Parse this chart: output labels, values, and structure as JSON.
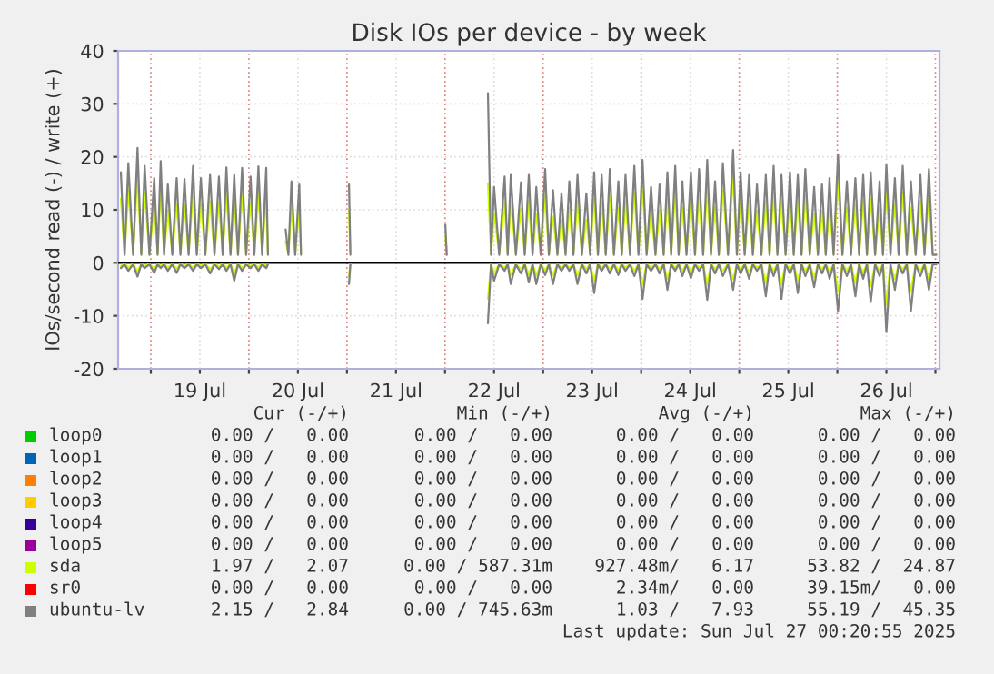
{
  "chart_data": {
    "type": "line",
    "title": "Disk IOs per device - by week",
    "ylabel": "IOs/second read (-) / write (+)",
    "x": [
      "2025-07-18T16:40",
      "2025-07-18T17:35",
      "2025-07-18T18:30",
      "2025-07-18T19:40",
      "2025-07-18T20:45",
      "2025-07-18T21:40",
      "2025-07-18T22:30",
      "2025-07-18T23:40",
      "2025-07-19T00:50",
      "2025-07-19T01:40",
      "2025-07-19T02:25",
      "2025-07-19T03:15",
      "2025-07-19T04:10",
      "2025-07-19T05:15",
      "2025-07-19T06:20",
      "2025-07-19T07:15",
      "2025-07-19T08:15",
      "2025-07-19T09:15",
      "2025-07-19T10:20",
      "2025-07-19T11:15",
      "2025-07-19T12:15",
      "2025-07-19T13:20",
      "2025-07-19T14:30",
      "2025-07-19T15:35",
      "2025-07-19T16:40",
      "2025-07-19T17:35",
      "2025-07-19T18:30",
      "2025-07-19T19:30",
      "2025-07-19T20:25",
      "2025-07-19T21:20",
      "2025-07-19T22:20",
      "2025-07-19T23:20",
      "2025-07-20T00:25",
      "2025-07-20T01:20",
      "2025-07-20T02:20",
      "2025-07-20T03:15",
      "2025-07-20T04:15",
      "2025-07-20T04:40",
      "2025-07-20T06:30",
      "2025-07-20T09:00",
      "2025-07-20T09:40",
      "2025-07-20T10:25",
      "2025-07-20T11:20",
      "2025-07-20T12:20",
      "2025-07-20T12:45",
      "2025-07-20T18:00",
      "2025-07-21T00:30",
      "2025-07-21T00:50",
      "2025-07-21T12:00",
      "2025-07-22T00:05",
      "2025-07-22T00:25",
      "2025-07-22T05:00",
      "2025-07-22T10:30",
      "2025-07-22T11:15",
      "2025-07-22T12:00",
      "2025-07-22T13:15",
      "2025-07-22T14:35",
      "2025-07-22T15:20",
      "2025-07-22T16:05",
      "2025-07-22T17:20",
      "2025-07-22T18:35",
      "2025-07-22T19:30",
      "2025-07-22T20:30",
      "2025-07-22T21:25",
      "2025-07-22T22:20",
      "2025-07-22T23:25",
      "2025-07-23T00:30",
      "2025-07-23T01:25",
      "2025-07-23T02:25",
      "2025-07-23T03:30",
      "2025-07-23T04:30",
      "2025-07-23T05:30",
      "2025-07-23T06:25",
      "2025-07-23T07:25",
      "2025-07-23T08:25",
      "2025-07-23T09:30",
      "2025-07-23T10:35",
      "2025-07-23T11:30",
      "2025-07-23T12:30",
      "2025-07-23T13:25",
      "2025-07-23T14:20",
      "2025-07-23T15:20",
      "2025-07-23T16:20",
      "2025-07-23T17:20",
      "2025-07-23T18:25",
      "2025-07-23T19:15",
      "2025-07-23T20:10",
      "2025-07-23T21:15",
      "2025-07-23T22:20",
      "2025-07-23T23:20",
      "2025-07-24T00:20",
      "2025-07-24T01:20",
      "2025-07-24T02:25",
      "2025-07-24T03:30",
      "2025-07-24T04:30",
      "2025-07-24T05:30",
      "2025-07-24T06:25",
      "2025-07-24T07:20",
      "2025-07-24T08:20",
      "2025-07-24T09:10",
      "2025-07-24T10:05",
      "2025-07-24T11:05",
      "2025-07-24T12:10",
      "2025-07-24T13:10",
      "2025-07-24T14:10",
      "2025-07-24T15:10",
      "2025-07-24T16:10",
      "2025-07-24T17:05",
      "2025-07-24T18:05",
      "2025-07-24T19:00",
      "2025-07-24T20:00",
      "2025-07-24T21:15",
      "2025-07-24T22:30",
      "2025-07-24T23:25",
      "2025-07-25T00:20",
      "2025-07-25T01:20",
      "2025-07-25T02:25",
      "2025-07-25T03:20",
      "2025-07-25T04:20",
      "2025-07-25T05:25",
      "2025-07-25T06:30",
      "2025-07-25T07:25",
      "2025-07-25T08:25",
      "2025-07-25T09:20",
      "2025-07-25T10:20",
      "2025-07-25T11:20",
      "2025-07-25T12:25",
      "2025-07-25T13:20",
      "2025-07-25T14:20",
      "2025-07-25T15:15",
      "2025-07-25T16:10",
      "2025-07-25T17:15",
      "2025-07-25T18:20",
      "2025-07-25T19:15",
      "2025-07-25T20:15",
      "2025-07-25T21:10",
      "2025-07-25T22:05",
      "2025-07-25T23:05",
      "2025-07-26T00:10",
      "2025-07-26T01:15",
      "2025-07-26T02:20",
      "2025-07-26T03:20",
      "2025-07-26T04:25",
      "2025-07-26T05:20",
      "2025-07-26T06:20",
      "2025-07-26T07:15",
      "2025-07-26T08:10",
      "2025-07-26T09:15",
      "2025-07-26T10:20",
      "2025-07-26T11:10",
      "2025-07-26T12:00",
      "2025-07-26T13:00",
      "2025-07-26T14:05",
      "2025-07-26T15:00",
      "2025-07-26T16:00",
      "2025-07-26T17:00",
      "2025-07-26T18:00",
      "2025-07-26T19:10",
      "2025-07-26T20:20",
      "2025-07-26T21:20",
      "2025-07-26T22:25",
      "2025-07-26T23:20",
      "2025-07-27T00:15"
    ],
    "series": [
      {
        "name": "loop0",
        "color": "#00cc00",
        "values": [
          null,
          null,
          null,
          null,
          null,
          null,
          null,
          null,
          null,
          null,
          null,
          null,
          null,
          null,
          null,
          null,
          null,
          null,
          null,
          null,
          null,
          null,
          null,
          null,
          null,
          null,
          null,
          null,
          null,
          null,
          null,
          null,
          null,
          null,
          null,
          null,
          null,
          null,
          null,
          null,
          null,
          null,
          null,
          null,
          null,
          null,
          null,
          null,
          null,
          null,
          null,
          null,
          null,
          null,
          null,
          null,
          null,
          null,
          null,
          null,
          null,
          null,
          null,
          null,
          null,
          null,
          null,
          null,
          null,
          null,
          null,
          null,
          null,
          null,
          null,
          null,
          null,
          null,
          null,
          null,
          null,
          null,
          null,
          null,
          null,
          null,
          null,
          null,
          null,
          null,
          null,
          null,
          null,
          null,
          null,
          null,
          null,
          null,
          null,
          null,
          null,
          null,
          null,
          null,
          null,
          null,
          null,
          null,
          null,
          null,
          null,
          null,
          null,
          null,
          null,
          null,
          null,
          null,
          null,
          null,
          null,
          null,
          null,
          null,
          null,
          null,
          null,
          null,
          null,
          null,
          null,
          null,
          null,
          null,
          null,
          null,
          null,
          null,
          null,
          null,
          null,
          null,
          null,
          null,
          null,
          null,
          null,
          null,
          null,
          null,
          null,
          null,
          null,
          null,
          null,
          null,
          null,
          null,
          null,
          null,
          null,
          null,
          null
        ]
      },
      {
        "name": "loop1",
        "color": "#0066b3",
        "values": [
          null,
          null,
          null,
          null,
          null,
          null,
          null,
          null,
          null,
          null,
          null,
          null,
          null,
          null,
          null,
          null,
          null,
          null,
          null,
          null,
          null,
          null,
          null,
          null,
          null,
          null,
          null,
          null,
          null,
          null,
          null,
          null,
          null,
          null,
          null,
          null,
          null,
          null,
          null,
          null,
          null,
          null,
          null,
          null,
          null,
          null,
          null,
          null,
          null,
          null,
          null,
          null,
          null,
          null,
          null,
          null,
          null,
          null,
          null,
          null,
          null,
          null,
          null,
          null,
          null,
          null,
          null,
          null,
          null,
          null,
          null,
          null,
          null,
          null,
          null,
          null,
          null,
          null,
          null,
          null,
          null,
          null,
          null,
          null,
          null,
          null,
          null,
          null,
          null,
          null,
          null,
          null,
          null,
          null,
          null,
          null,
          null,
          null,
          null,
          null,
          null,
          null,
          null,
          null,
          null,
          null,
          null,
          null,
          null,
          null,
          null,
          null,
          null,
          null,
          null,
          null,
          null,
          null,
          null,
          null,
          null,
          null,
          null,
          null,
          null,
          null,
          null,
          null,
          null,
          null,
          null,
          null,
          null,
          null,
          null,
          null,
          null,
          null,
          null,
          null,
          null,
          null,
          null,
          null,
          null,
          null,
          null,
          null,
          null,
          null,
          null,
          null,
          null,
          null,
          null,
          null,
          null,
          null,
          null,
          null,
          null,
          null,
          null
        ]
      },
      {
        "name": "loop2",
        "color": "#ff8000",
        "values": [
          null,
          null,
          null,
          null,
          null,
          null,
          null,
          null,
          null,
          null,
          null,
          null,
          null,
          null,
          null,
          null,
          null,
          null,
          null,
          null,
          null,
          null,
          null,
          null,
          null,
          null,
          null,
          null,
          null,
          null,
          null,
          null,
          null,
          null,
          null,
          null,
          null,
          null,
          null,
          null,
          null,
          null,
          null,
          null,
          null,
          null,
          null,
          null,
          null,
          null,
          null,
          null,
          null,
          null,
          null,
          null,
          null,
          null,
          null,
          null,
          null,
          null,
          null,
          null,
          null,
          null,
          null,
          null,
          null,
          null,
          null,
          null,
          null,
          null,
          null,
          null,
          null,
          null,
          null,
          null,
          null,
          null,
          null,
          null,
          null,
          null,
          null,
          null,
          null,
          null,
          null,
          null,
          null,
          null,
          null,
          null,
          null,
          null,
          null,
          null,
          null,
          null,
          null,
          null,
          null,
          null,
          null,
          null,
          null,
          null,
          null,
          null,
          null,
          null,
          null,
          null,
          null,
          null,
          null,
          null,
          null,
          null,
          null,
          null,
          null,
          null,
          null,
          null,
          null,
          null,
          null,
          null,
          null,
          null,
          null,
          null,
          null,
          null,
          null,
          null,
          null,
          null,
          null,
          null,
          null,
          null,
          null,
          null,
          null,
          null,
          null,
          null,
          null,
          null,
          null,
          null,
          null,
          null,
          null,
          null,
          null,
          null,
          null
        ]
      },
      {
        "name": "loop3",
        "color": "#ffcc00",
        "values": [
          null,
          null,
          null,
          null,
          null,
          null,
          null,
          null,
          null,
          null,
          null,
          null,
          null,
          null,
          null,
          null,
          null,
          null,
          null,
          null,
          null,
          null,
          null,
          null,
          null,
          null,
          null,
          null,
          null,
          null,
          null,
          null,
          null,
          null,
          null,
          null,
          null,
          null,
          null,
          null,
          null,
          null,
          null,
          null,
          null,
          null,
          null,
          null,
          null,
          null,
          null,
          null,
          null,
          null,
          null,
          null,
          null,
          null,
          null,
          null,
          null,
          null,
          null,
          null,
          null,
          null,
          null,
          null,
          null,
          null,
          null,
          null,
          null,
          null,
          null,
          null,
          null,
          null,
          null,
          null,
          null,
          null,
          null,
          null,
          null,
          null,
          null,
          null,
          null,
          null,
          null,
          null,
          null,
          null,
          null,
          null,
          null,
          null,
          null,
          null,
          null,
          null,
          null,
          null,
          null,
          null,
          null,
          null,
          null,
          null,
          null,
          null,
          null,
          null,
          null,
          null,
          null,
          null,
          null,
          null,
          null,
          null,
          null,
          null,
          null,
          null,
          null,
          null,
          null,
          null,
          null,
          null,
          null,
          null,
          null,
          null,
          null,
          null,
          null,
          null,
          null,
          null,
          null,
          null,
          null,
          null,
          null,
          null,
          null,
          null,
          null,
          null,
          null,
          null,
          null,
          null,
          null,
          null,
          null,
          null,
          null,
          null,
          null
        ]
      },
      {
        "name": "loop4",
        "color": "#330099",
        "values": [
          null,
          null,
          null,
          null,
          null,
          null,
          null,
          null,
          null,
          null,
          null,
          null,
          null,
          null,
          null,
          null,
          null,
          null,
          null,
          null,
          null,
          null,
          null,
          null,
          null,
          null,
          null,
          null,
          null,
          null,
          null,
          null,
          null,
          null,
          null,
          null,
          null,
          null,
          null,
          null,
          null,
          null,
          null,
          null,
          null,
          null,
          null,
          null,
          null,
          null,
          null,
          null,
          null,
          null,
          null,
          null,
          null,
          null,
          null,
          null,
          null,
          null,
          null,
          null,
          null,
          null,
          null,
          null,
          null,
          null,
          null,
          null,
          null,
          null,
          null,
          null,
          null,
          null,
          null,
          null,
          null,
          null,
          null,
          null,
          null,
          null,
          null,
          null,
          null,
          null,
          null,
          null,
          null,
          null,
          null,
          null,
          null,
          null,
          null,
          null,
          null,
          null,
          null,
          null,
          null,
          null,
          null,
          null,
          null,
          null,
          null,
          null,
          null,
          null,
          null,
          null,
          null,
          null,
          null,
          null,
          null,
          null,
          null,
          null,
          null,
          null,
          null,
          null,
          null,
          null,
          null,
          null,
          null,
          null,
          null,
          null,
          null,
          null,
          null,
          null,
          null,
          null,
          null,
          null,
          null,
          null,
          null,
          null,
          null,
          null,
          null,
          null,
          null,
          null,
          null,
          null,
          null,
          null,
          null,
          null,
          null,
          null,
          null
        ]
      },
      {
        "name": "loop5",
        "color": "#990099",
        "values": [
          null,
          null,
          null,
          null,
          null,
          null,
          null,
          null,
          null,
          null,
          null,
          null,
          null,
          null,
          null,
          null,
          null,
          null,
          null,
          null,
          null,
          null,
          null,
          null,
          null,
          null,
          null,
          null,
          null,
          null,
          null,
          null,
          null,
          null,
          null,
          null,
          null,
          null,
          null,
          null,
          null,
          null,
          null,
          null,
          null,
          null,
          null,
          null,
          null,
          null,
          null,
          null,
          null,
          null,
          null,
          null,
          null,
          null,
          null,
          null,
          null,
          null,
          null,
          null,
          null,
          null,
          null,
          null,
          null,
          null,
          null,
          null,
          null,
          null,
          null,
          null,
          null,
          null,
          null,
          null,
          null,
          null,
          null,
          null,
          null,
          null,
          null,
          null,
          null,
          null,
          null,
          null,
          null,
          null,
          null,
          null,
          null,
          null,
          null,
          null,
          null,
          null,
          null,
          null,
          null,
          null,
          null,
          null,
          null,
          null,
          null,
          null,
          null,
          null,
          null,
          null,
          null,
          null,
          null,
          null,
          null,
          null,
          null,
          null,
          null,
          null,
          null,
          null,
          null,
          null,
          null,
          null,
          null,
          null,
          null,
          null,
          null,
          null,
          null,
          null,
          null,
          null,
          null,
          null,
          null,
          null,
          null,
          null,
          null,
          null,
          null,
          null,
          null,
          null,
          null,
          null,
          null,
          null,
          null,
          null,
          null,
          null,
          null
        ]
      },
      {
        "name": "sda",
        "color": "#ccff00",
        "values": [
          12.1,
          1.8,
          13.8,
          1.8,
          16.7,
          1.8,
          13.3,
          1.8,
          11.0,
          1.8,
          14.2,
          1.8,
          9.8,
          1.8,
          11.0,
          1.8,
          10.8,
          1.8,
          13.3,
          1.8,
          11.0,
          1.8,
          11.6,
          1.8,
          11.3,
          1.8,
          13.0,
          1.8,
          11.6,
          1.8,
          12.9,
          1.8,
          11.3,
          1.8,
          13.2,
          1.8,
          12.9,
          1.8,
          null,
          4.0,
          1.8,
          10.4,
          1.8,
          9.8,
          1.8,
          null,
          9.8,
          1.8,
          null,
          5.0,
          1.8,
          null,
          15.0,
          1.8,
          9.3,
          1.8,
          11.3,
          1.8,
          11.6,
          1.8,
          10.2,
          1.8,
          11.6,
          1.8,
          9.3,
          1.8,
          12.7,
          1.8,
          8.7,
          1.8,
          8.1,
          1.8,
          10.4,
          1.8,
          11.6,
          1.8,
          8.1,
          1.8,
          12.1,
          1.8,
          11.6,
          1.8,
          12.7,
          1.8,
          10.4,
          1.8,
          11.6,
          1.8,
          13.3,
          1.8,
          14.4,
          1.8,
          9.3,
          1.8,
          9.8,
          1.8,
          12.1,
          1.8,
          13.3,
          1.8,
          10.4,
          1.8,
          12.1,
          1.8,
          12.7,
          1.8,
          14.4,
          1.8,
          10.4,
          1.8,
          13.8,
          1.8,
          16.3,
          1.8,
          12.1,
          1.8,
          11.6,
          1.8,
          9.8,
          1.8,
          11.6,
          1.8,
          13.3,
          1.8,
          11.6,
          1.8,
          12.1,
          1.8,
          11.6,
          1.8,
          12.7,
          1.8,
          9.3,
          1.8,
          9.8,
          1.8,
          11.0,
          1.8,
          15.5,
          1.8,
          10.4,
          1.8,
          11.0,
          1.8,
          11.6,
          1.8,
          12.1,
          1.8,
          10.4,
          1.8,
          13.6,
          1.8,
          11.0,
          1.8,
          13.3,
          1.8,
          10.4,
          1.8,
          11.6,
          1.8,
          12.7,
          1.8,
          1.8
        ]
      },
      {
        "color": "#ccff00",
        "values": [
          -0.6,
          -0.2,
          -0.9,
          -0.2,
          -1.6,
          -0.2,
          -0.6,
          -0.2,
          -1.1,
          -0.2,
          -0.6,
          -0.2,
          -0.9,
          -0.2,
          -1.1,
          -0.2,
          -0.6,
          -0.2,
          -0.9,
          -0.2,
          -0.6,
          -0.2,
          -1.2,
          -0.2,
          -0.7,
          -0.2,
          -0.9,
          -0.2,
          -2.0,
          -0.2,
          -0.9,
          -0.2,
          -0.6,
          -0.2,
          -0.9,
          -0.2,
          -0.6,
          -0.2,
          null,
          null,
          null,
          null,
          null,
          null,
          null,
          null,
          -2.4,
          -0.2,
          null,
          null,
          null,
          null,
          -6.8,
          -0.2,
          -2.0,
          -0.2,
          -0.9,
          -0.2,
          -2.4,
          -0.2,
          -1.2,
          -0.2,
          -2.2,
          -0.2,
          -2.4,
          -0.2,
          -1.4,
          -0.2,
          -2.4,
          -0.2,
          -0.9,
          -0.2,
          -0.9,
          -0.2,
          -2.4,
          -0.2,
          -1.2,
          -0.2,
          -3.4,
          -0.2,
          -0.9,
          -0.2,
          -1.2,
          -0.2,
          -1.4,
          -0.2,
          -0.9,
          -0.2,
          -1.5,
          -0.2,
          -4.1,
          -0.2,
          -0.9,
          -0.2,
          -1.2,
          -0.2,
          -3.1,
          -0.2,
          -0.9,
          -0.2,
          -1.5,
          -0.2,
          -1.7,
          -0.2,
          -0.9,
          -0.2,
          -4.2,
          -0.2,
          -1.2,
          -0.2,
          -1.5,
          -0.2,
          -3.1,
          -0.2,
          -1.2,
          -0.2,
          -1.8,
          -0.2,
          -0.9,
          -0.2,
          -3.8,
          -0.2,
          -1.5,
          -0.2,
          -4.1,
          -0.2,
          -1.2,
          -0.2,
          -3.4,
          -0.2,
          -1.5,
          -0.2,
          -2.8,
          -0.2,
          -1.2,
          -0.2,
          -1.8,
          -0.2,
          -5.5,
          -0.2,
          -1.5,
          -0.2,
          -3.8,
          -0.2,
          -1.8,
          -0.2,
          -4.4,
          -0.2,
          -1.5,
          -0.2,
          -7.9,
          -0.2,
          -3.1,
          -0.2,
          -1.2,
          -0.2,
          -5.5,
          -0.2,
          -1.5,
          -0.2,
          -3.1,
          -0.2,
          -0.2
        ]
      },
      {
        "name": "sr0",
        "color": "#ff0000",
        "values": [
          null,
          null,
          null,
          null,
          null,
          null,
          null,
          null,
          null,
          null,
          null,
          null,
          null,
          null,
          null,
          null,
          null,
          null,
          null,
          null,
          null,
          null,
          null,
          null,
          null,
          null,
          null,
          null,
          null,
          null,
          null,
          null,
          null,
          null,
          null,
          null,
          null,
          null,
          null,
          null,
          null,
          null,
          null,
          null,
          null,
          null,
          null,
          null,
          null,
          null,
          null,
          null,
          null,
          null,
          null,
          null,
          null,
          null,
          null,
          null,
          null,
          null,
          null,
          null,
          null,
          null,
          null,
          null,
          null,
          null,
          null,
          null,
          null,
          null,
          null,
          null,
          null,
          null,
          null,
          null,
          null,
          null,
          null,
          null,
          null,
          null,
          null,
          null,
          null,
          null,
          null,
          null,
          null,
          null,
          null,
          null,
          null,
          null,
          null,
          null,
          null,
          null,
          null,
          null,
          null,
          null,
          null,
          null,
          null,
          null,
          null,
          null,
          null,
          null,
          null,
          null,
          null,
          null,
          null,
          null,
          null,
          null,
          null,
          null,
          null,
          null,
          null,
          null,
          null,
          null,
          null,
          null,
          null,
          null,
          null,
          null,
          null,
          null,
          null,
          null,
          null,
          null,
          null,
          null,
          null,
          null,
          null,
          null,
          null,
          null,
          null,
          null,
          null,
          null,
          null,
          null,
          null,
          null,
          null,
          null,
          null,
          null,
          null
        ]
      },
      {
        "name": "ubuntu-lv",
        "color": "#808080",
        "values": [
          17.1,
          1.5,
          18.8,
          1.5,
          21.7,
          1.5,
          18.3,
          1.5,
          16.0,
          1.5,
          19.2,
          1.5,
          14.8,
          1.5,
          16.0,
          1.5,
          15.8,
          1.5,
          18.3,
          1.5,
          16.0,
          1.5,
          16.6,
          1.5,
          16.3,
          1.5,
          18.0,
          1.5,
          16.6,
          1.5,
          17.9,
          1.5,
          16.3,
          1.5,
          18.2,
          1.5,
          17.9,
          1.5,
          null,
          6.3,
          1.5,
          15.4,
          1.5,
          14.8,
          1.5,
          null,
          14.8,
          1.5,
          null,
          7.2,
          1.5,
          null,
          32.0,
          1.5,
          14.3,
          1.5,
          16.3,
          1.5,
          16.6,
          1.5,
          15.2,
          1.5,
          16.6,
          1.5,
          14.3,
          1.5,
          17.7,
          1.5,
          13.7,
          1.5,
          13.1,
          1.5,
          15.4,
          1.5,
          16.6,
          1.5,
          13.1,
          1.5,
          17.1,
          1.5,
          16.6,
          1.5,
          17.7,
          1.5,
          15.4,
          1.5,
          16.6,
          1.5,
          18.3,
          1.5,
          19.4,
          1.5,
          14.3,
          1.5,
          14.8,
          1.5,
          17.1,
          1.5,
          18.3,
          1.5,
          15.4,
          1.5,
          17.1,
          1.5,
          17.7,
          1.5,
          19.4,
          1.5,
          15.4,
          1.5,
          18.8,
          1.5,
          21.3,
          1.5,
          17.1,
          1.5,
          16.6,
          1.5,
          14.8,
          1.5,
          16.6,
          1.5,
          18.3,
          1.5,
          16.6,
          1.5,
          17.1,
          1.5,
          16.6,
          1.5,
          17.7,
          1.5,
          14.3,
          1.5,
          14.8,
          1.5,
          16.0,
          1.5,
          20.5,
          1.5,
          15.4,
          1.5,
          16.0,
          1.5,
          16.6,
          1.5,
          17.1,
          1.5,
          15.4,
          1.5,
          18.6,
          1.5,
          16.0,
          1.5,
          18.3,
          1.5,
          15.4,
          1.5,
          16.6,
          1.5,
          17.7,
          1.5,
          1.5
        ]
      },
      {
        "color": "#808080",
        "values": [
          -1.0,
          -0.3,
          -1.5,
          -0.3,
          -2.6,
          -0.3,
          -1.0,
          -0.3,
          -1.9,
          -0.3,
          -1.0,
          -0.3,
          -1.5,
          -0.3,
          -1.9,
          -0.3,
          -1.0,
          -0.3,
          -1.5,
          -0.3,
          -1.0,
          -0.3,
          -2.0,
          -0.3,
          -1.2,
          -0.3,
          -1.5,
          -0.3,
          -3.4,
          -0.3,
          -1.5,
          -0.3,
          -1.0,
          -0.3,
          -1.5,
          -0.3,
          -1.0,
          -0.3,
          null,
          null,
          null,
          null,
          null,
          null,
          null,
          null,
          -4.0,
          -0.3,
          null,
          null,
          null,
          null,
          -11.4,
          -0.3,
          -3.4,
          -0.3,
          -1.5,
          -0.3,
          -4.0,
          -0.3,
          -2.0,
          -0.3,
          -3.7,
          -0.3,
          -4.0,
          -0.3,
          -2.3,
          -0.3,
          -4.0,
          -0.3,
          -1.5,
          -0.3,
          -1.5,
          -0.3,
          -4.0,
          -0.3,
          -2.0,
          -0.3,
          -5.7,
          -0.3,
          -1.5,
          -0.3,
          -2.0,
          -0.3,
          -2.3,
          -0.3,
          -1.5,
          -0.3,
          -2.5,
          -0.3,
          -6.8,
          -0.3,
          -1.5,
          -0.3,
          -2.0,
          -0.3,
          -5.1,
          -0.3,
          -1.5,
          -0.3,
          -2.5,
          -0.3,
          -2.9,
          -0.3,
          -1.5,
          -0.3,
          -7.0,
          -0.3,
          -2.0,
          -0.3,
          -2.5,
          -0.3,
          -5.1,
          -0.3,
          -2.0,
          -0.3,
          -3.0,
          -0.3,
          -1.5,
          -0.3,
          -6.3,
          -0.3,
          -2.5,
          -0.3,
          -6.8,
          -0.3,
          -2.0,
          -0.3,
          -5.7,
          -0.3,
          -2.5,
          -0.3,
          -4.6,
          -0.3,
          -2.0,
          -0.3,
          -3.0,
          -0.3,
          -9.1,
          -0.3,
          -2.5,
          -0.3,
          -6.3,
          -0.3,
          -3.0,
          -0.3,
          -7.4,
          -0.3,
          -2.5,
          -0.3,
          -13.1,
          -0.3,
          -5.1,
          -0.3,
          -2.0,
          -0.3,
          -9.1,
          -0.3,
          -2.5,
          -0.3,
          -5.1,
          -0.3,
          -0.3
        ]
      }
    ],
    "xlim": [
      "2025-07-18T16:00",
      "2025-07-27T01:00"
    ],
    "xticks": [
      {
        "value": "2025-07-19T00:00",
        "label": null
      },
      {
        "value": "2025-07-19T12:00",
        "label": "19 Jul"
      },
      {
        "value": "2025-07-20T00:00",
        "label": null
      },
      {
        "value": "2025-07-20T12:00",
        "label": "20 Jul"
      },
      {
        "value": "2025-07-21T00:00",
        "label": null
      },
      {
        "value": "2025-07-21T12:00",
        "label": "21 Jul"
      },
      {
        "value": "2025-07-22T00:00",
        "label": null
      },
      {
        "value": "2025-07-22T12:00",
        "label": "22 Jul"
      },
      {
        "value": "2025-07-23T00:00",
        "label": null
      },
      {
        "value": "2025-07-23T12:00",
        "label": "23 Jul"
      },
      {
        "value": "2025-07-24T00:00",
        "label": null
      },
      {
        "value": "2025-07-24T12:00",
        "label": "24 Jul"
      },
      {
        "value": "2025-07-25T00:00",
        "label": null
      },
      {
        "value": "2025-07-25T12:00",
        "label": "25 Jul"
      },
      {
        "value": "2025-07-26T00:00",
        "label": null
      },
      {
        "value": "2025-07-26T12:00",
        "label": "26 Jul"
      },
      {
        "value": "2025-07-27T00:00",
        "label": null
      }
    ],
    "ylim": [
      -20,
      40
    ],
    "yticks": [
      -20,
      -10,
      0,
      10,
      20,
      30,
      40
    ],
    "ref_lines": [
      {
        "axis": "y",
        "value": 0,
        "color": "#000000"
      }
    ],
    "grid": true,
    "legend": "bottom",
    "annotations": [
      "Cur (-/+)",
      "Min (-/+)",
      "Avg (-/+)",
      "Max (-/+)",
      "0.00 /   0.00",
      "0.00 /   0.00",
      "0.00 /   0.00",
      "0.00 /   0.00",
      "0.00 /   0.00",
      "0.00 /   0.00",
      "0.00 /   0.00",
      "0.00 /   0.00",
      "0.00 /   0.00",
      "0.00 /   0.00",
      "0.00 /   0.00",
      "0.00 /   0.00",
      "0.00 /   0.00",
      "0.00 /   0.00",
      "0.00 /   0.00",
      "0.00 /   0.00",
      "0.00 /   0.00",
      "0.00 /   0.00",
      "0.00 /   0.00",
      "0.00 /   0.00",
      "0.00 /   0.00",
      "0.00 /   0.00",
      "0.00 /   0.00",
      "0.00 /   0.00",
      "1.97 /   2.07",
      "0.00 / 587.31m",
      "927.48m/   6.17",
      "53.82 /  24.87",
      "0.00 /   0.00",
      "0.00 /   0.00",
      "2.34m/   0.00",
      "39.15m/   0.00",
      "2.15 /   2.84",
      "0.00 / 745.63m",
      "1.03 /   7.93",
      "55.19 /  45.35",
      "Last update: Sun Jul 27 00:20:55 2025"
    ]
  }
}
